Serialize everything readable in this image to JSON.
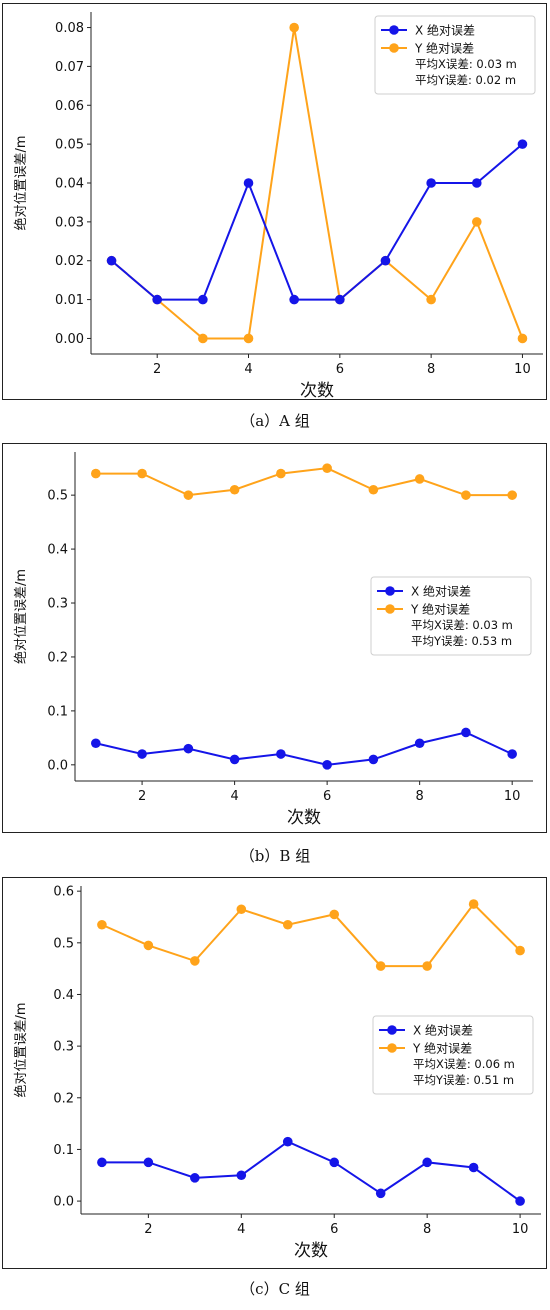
{
  "chart_data": [
    {
      "type": "line",
      "caption": "（a）A 组",
      "xlabel": "次数",
      "ylabel": "绝对位置误差/m",
      "x": [
        1,
        2,
        3,
        4,
        5,
        6,
        7,
        8,
        9,
        10
      ],
      "xticks": [
        2,
        4,
        6,
        8,
        10
      ],
      "xlim": [
        0.55,
        10.45
      ],
      "ylim": [
        -0.004,
        0.084
      ],
      "yticks": [
        0.0,
        0.01,
        0.02,
        0.03,
        0.04,
        0.05,
        0.06,
        0.07,
        0.08
      ],
      "ytick_labels": [
        "0.00",
        "0.01",
        "0.02",
        "0.03",
        "0.04",
        "0.05",
        "0.06",
        "0.07",
        "0.08"
      ],
      "legend_position": "top-right",
      "series": [
        {
          "name": "X 绝对误差",
          "color": "#1515e8",
          "values": [
            0.02,
            0.01,
            0.01,
            0.04,
            0.01,
            0.01,
            0.02,
            0.04,
            0.04,
            0.05
          ]
        },
        {
          "name": "Y 绝对误差",
          "color": "#ffa31a",
          "values": [
            0.02,
            0.01,
            0.0,
            0.0,
            0.08,
            0.01,
            0.02,
            0.01,
            0.03,
            0.0
          ]
        }
      ],
      "annotations": [
        "平均X误差: 0.03 m",
        "平均Y误差: 0.02 m"
      ]
    },
    {
      "type": "line",
      "caption": "（b）B 组",
      "xlabel": "次数",
      "ylabel": "绝对位置误差/m",
      "x": [
        1,
        2,
        3,
        4,
        5,
        6,
        7,
        8,
        9,
        10
      ],
      "xticks": [
        2,
        4,
        6,
        8,
        10
      ],
      "xlim": [
        0.55,
        10.45
      ],
      "ylim": [
        -0.03,
        0.58
      ],
      "yticks": [
        0.0,
        0.1,
        0.2,
        0.3,
        0.4,
        0.5
      ],
      "ytick_labels": [
        "0.0",
        "0.1",
        "0.2",
        "0.3",
        "0.4",
        "0.5"
      ],
      "legend_position": "center-right",
      "series": [
        {
          "name": "X 绝对误差",
          "color": "#1515e8",
          "values": [
            0.04,
            0.02,
            0.03,
            0.01,
            0.02,
            0.0,
            0.01,
            0.04,
            0.06,
            0.02
          ]
        },
        {
          "name": "Y 绝对误差",
          "color": "#ffa31a",
          "values": [
            0.54,
            0.54,
            0.5,
            0.51,
            0.54,
            0.55,
            0.51,
            0.53,
            0.5,
            0.5
          ]
        }
      ],
      "annotations": [
        "平均X误差: 0.03 m",
        "平均Y误差: 0.53 m"
      ]
    },
    {
      "type": "line",
      "caption": "（c）C 组",
      "xlabel": "次数",
      "ylabel": "绝对位置误差/m",
      "x": [
        1,
        2,
        3,
        4,
        5,
        6,
        7,
        8,
        9,
        10
      ],
      "xticks": [
        2,
        4,
        6,
        8,
        10
      ],
      "xlim": [
        0.55,
        10.45
      ],
      "ylim": [
        -0.025,
        0.61
      ],
      "yticks": [
        0.0,
        0.1,
        0.2,
        0.3,
        0.4,
        0.5,
        0.6
      ],
      "ytick_labels": [
        "0.0",
        "0.1",
        "0.2",
        "0.3",
        "0.4",
        "0.5",
        "0.6"
      ],
      "legend_position": "center-right",
      "series": [
        {
          "name": "X 绝对误差",
          "color": "#1515e8",
          "values": [
            0.075,
            0.075,
            0.045,
            0.05,
            0.115,
            0.075,
            0.015,
            0.075,
            0.065,
            0.0
          ]
        },
        {
          "name": "Y 绝对误差",
          "color": "#ffa31a",
          "values": [
            0.535,
            0.495,
            0.465,
            0.565,
            0.535,
            0.555,
            0.455,
            0.455,
            0.575,
            0.485
          ]
        }
      ],
      "annotations": [
        "平均X误差: 0.06 m",
        "平均Y误差: 0.51 m"
      ]
    }
  ]
}
